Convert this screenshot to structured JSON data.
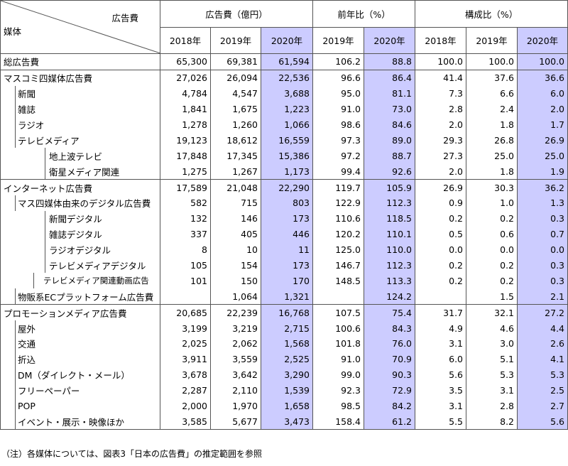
{
  "header": {
    "corner_top": "広告費",
    "corner_bottom": "媒体",
    "groups": [
      "広告費（億円）",
      "前年比（%）",
      "構成比（%）"
    ],
    "years": [
      "2018年",
      "2019年",
      "2020年",
      "2019年",
      "2020年",
      "2018年",
      "2019年",
      "2020年"
    ]
  },
  "table": {
    "rows": [
      [
        "総広告費",
        "65,300",
        "69,381",
        "61,594",
        "106.2",
        "88.8",
        "100.0",
        "100.0",
        "100.0"
      ],
      [
        "マスコミ四媒体広告費",
        "27,026",
        "26,094",
        "22,536",
        "96.6",
        "86.4",
        "41.4",
        "37.6",
        "36.6"
      ],
      [
        "新聞",
        "4,784",
        "4,547",
        "3,688",
        "95.0",
        "81.1",
        "7.3",
        "6.6",
        "6.0"
      ],
      [
        "雑誌",
        "1,841",
        "1,675",
        "1,223",
        "91.0",
        "73.0",
        "2.8",
        "2.4",
        "2.0"
      ],
      [
        "ラジオ",
        "1,278",
        "1,260",
        "1,066",
        "98.6",
        "84.6",
        "2.0",
        "1.8",
        "1.7"
      ],
      [
        "テレビメディア",
        "19,123",
        "18,612",
        "16,559",
        "97.3",
        "89.0",
        "29.3",
        "26.8",
        "26.9"
      ],
      [
        "地上波テレビ",
        "17,848",
        "17,345",
        "15,386",
        "97.2",
        "88.7",
        "27.3",
        "25.0",
        "25.0"
      ],
      [
        "衛星メディア関連",
        "1,275",
        "1,267",
        "1,173",
        "99.4",
        "92.6",
        "2.0",
        "1.8",
        "1.9"
      ],
      [
        "インターネット広告費",
        "17,589",
        "21,048",
        "22,290",
        "119.7",
        "105.9",
        "26.9",
        "30.3",
        "36.2"
      ],
      [
        "マス四媒体由来のデジタル広告費",
        "582",
        "715",
        "803",
        "122.9",
        "112.3",
        "0.9",
        "1.0",
        "1.3"
      ],
      [
        "新聞デジタル",
        "132",
        "146",
        "173",
        "110.6",
        "118.5",
        "0.2",
        "0.2",
        "0.3"
      ],
      [
        "雑誌デジタル",
        "337",
        "405",
        "446",
        "120.2",
        "110.1",
        "0.5",
        "0.6",
        "0.7"
      ],
      [
        "ラジオデジタル",
        "8",
        "10",
        "11",
        "125.0",
        "110.0",
        "0.0",
        "0.0",
        "0.0"
      ],
      [
        "テレビメディアデジタル",
        "105",
        "154",
        "173",
        "146.7",
        "112.3",
        "0.2",
        "0.2",
        "0.3"
      ],
      [
        "テレビメディア関連動画広告",
        "101",
        "150",
        "170",
        "148.5",
        "113.3",
        "0.2",
        "0.2",
        "0.3"
      ],
      [
        "物販系ECプラットフォーム広告費",
        null,
        "1,064",
        "1,321",
        null,
        "124.2",
        null,
        "1.5",
        "2.1"
      ],
      [
        "プロモーションメディア広告費",
        "20,685",
        "22,239",
        "16,768",
        "107.5",
        "75.4",
        "31.7",
        "32.1",
        "27.2"
      ],
      [
        "屋外",
        "3,199",
        "3,219",
        "2,715",
        "100.6",
        "84.3",
        "4.9",
        "4.6",
        "4.4"
      ],
      [
        "交通",
        "2,025",
        "2,062",
        "1,568",
        "101.8",
        "76.0",
        "3.1",
        "3.0",
        "2.6"
      ],
      [
        "折込",
        "3,911",
        "3,559",
        "2,525",
        "91.0",
        "70.9",
        "6.0",
        "5.1",
        "4.1"
      ],
      [
        "DM（ダイレクト・メール）",
        "3,678",
        "3,642",
        "3,290",
        "99.0",
        "90.3",
        "5.6",
        "5.3",
        "5.3"
      ],
      [
        "フリーペーパー",
        "2,287",
        "2,110",
        "1,539",
        "92.3",
        "72.9",
        "3.5",
        "3.1",
        "2.5"
      ],
      [
        "POP",
        "2,000",
        "1,970",
        "1,658",
        "98.5",
        "84.2",
        "3.1",
        "2.8",
        "2.7"
      ],
      [
        "イベント・展示・映像ほか",
        "3,585",
        "5,677",
        "3,473",
        "158.4",
        "61.2",
        "5.5",
        "8.2",
        "5.6"
      ]
    ]
  },
  "note": "（注）各媒体については、図表3「日本の広告費」の推定範囲を参照"
}
